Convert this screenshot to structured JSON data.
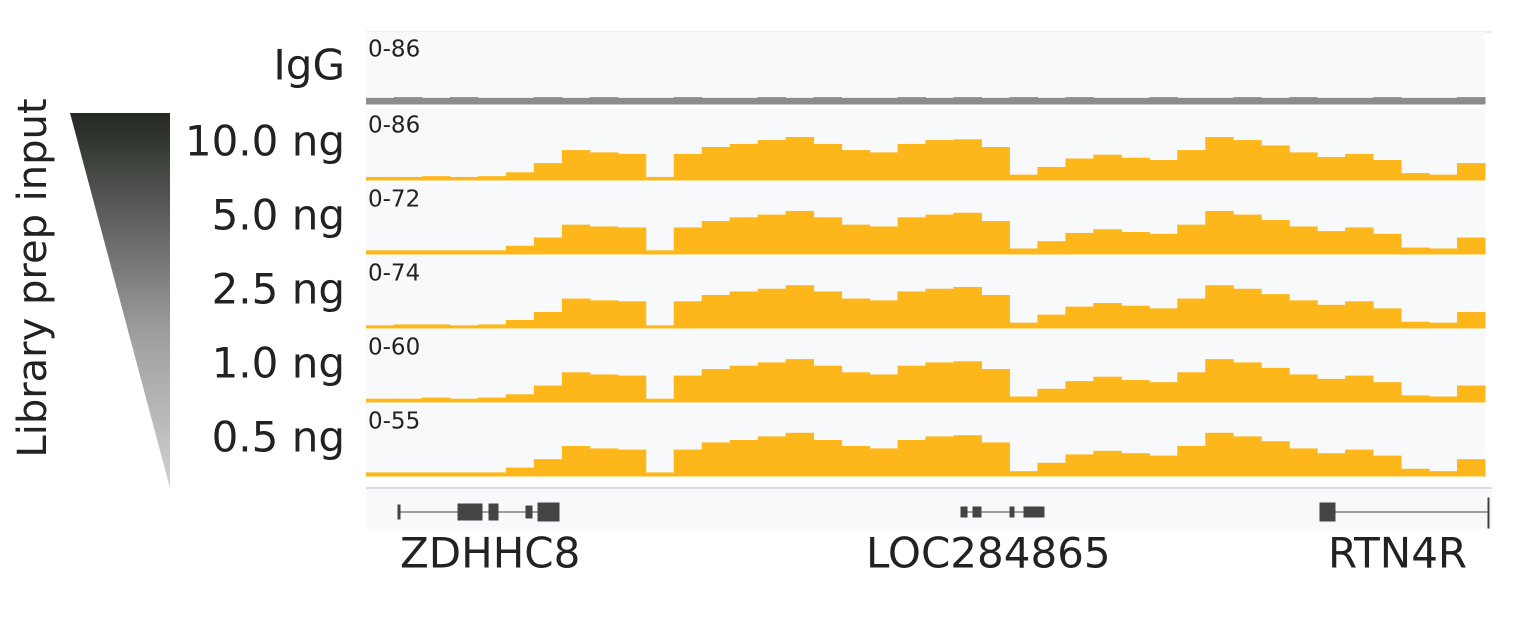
{
  "side_label": "Library prep input",
  "tracks": [
    {
      "label": "IgG",
      "range_label": "0-86",
      "ylim": [
        0,
        86
      ],
      "color": "#8c8c8c",
      "values": [
        8,
        9,
        8,
        9,
        8,
        8,
        9,
        8,
        9,
        8,
        8,
        9,
        8,
        8,
        9,
        8,
        9,
        8,
        8,
        9,
        8,
        9,
        8,
        9,
        8,
        9,
        8,
        8,
        9,
        8,
        8,
        9,
        8,
        9,
        8,
        8,
        9,
        8,
        8,
        9
      ]
    },
    {
      "label": "10.0 ng",
      "range_label": "0-86",
      "ylim": [
        0,
        86
      ],
      "color": "#fdb71a",
      "values": [
        4,
        4,
        5,
        4,
        5,
        10,
        22,
        39,
        36,
        34,
        4,
        34,
        43,
        47,
        52,
        56,
        47,
        39,
        36,
        47,
        52,
        53,
        43,
        7,
        17,
        28,
        33,
        29,
        26,
        39,
        56,
        52,
        45,
        36,
        30,
        34,
        26,
        9,
        7,
        22
      ]
    },
    {
      "label": "5.0 ng",
      "range_label": "0-72",
      "ylim": [
        0,
        72
      ],
      "color": "#fdb71a",
      "values": [
        4,
        4,
        4,
        4,
        4,
        9,
        18,
        32,
        30,
        29,
        4,
        29,
        36,
        40,
        43,
        47,
        40,
        32,
        30,
        40,
        43,
        45,
        36,
        6,
        14,
        23,
        27,
        24,
        22,
        32,
        47,
        43,
        37,
        30,
        25,
        29,
        22,
        7,
        6,
        18
      ]
    },
    {
      "label": "2.5 ng",
      "range_label": "0-74",
      "ylim": [
        0,
        74
      ],
      "color": "#fdb71a",
      "values": [
        3,
        4,
        4,
        3,
        4,
        9,
        18,
        33,
        31,
        30,
        3,
        30,
        37,
        41,
        44,
        48,
        41,
        33,
        31,
        41,
        44,
        46,
        37,
        6,
        15,
        24,
        28,
        25,
        22,
        33,
        48,
        44,
        38,
        31,
        26,
        30,
        22,
        7,
        6,
        18
      ]
    },
    {
      "label": "1.0 ng",
      "range_label": "0-60",
      "ylim": [
        0,
        60
      ],
      "color": "#fdb71a",
      "values": [
        3,
        3,
        4,
        3,
        4,
        7,
        15,
        27,
        25,
        24,
        3,
        24,
        30,
        33,
        36,
        39,
        33,
        27,
        25,
        33,
        36,
        37,
        30,
        5,
        12,
        19,
        23,
        20,
        18,
        27,
        39,
        36,
        31,
        25,
        21,
        24,
        18,
        6,
        5,
        15
      ]
    },
    {
      "label": "0.5 ng",
      "range_label": "0-55",
      "ylim": [
        0,
        55
      ],
      "color": "#fdb71a",
      "values": [
        3,
        3,
        3,
        3,
        3,
        7,
        14,
        25,
        23,
        22,
        3,
        22,
        28,
        30,
        33,
        36,
        30,
        25,
        23,
        30,
        33,
        34,
        28,
        4,
        11,
        18,
        21,
        19,
        17,
        25,
        36,
        33,
        29,
        23,
        19,
        22,
        17,
        6,
        4,
        14
      ]
    }
  ],
  "genes": [
    "ZDHHC8",
    "LOC284865",
    "RTN4R"
  ]
}
